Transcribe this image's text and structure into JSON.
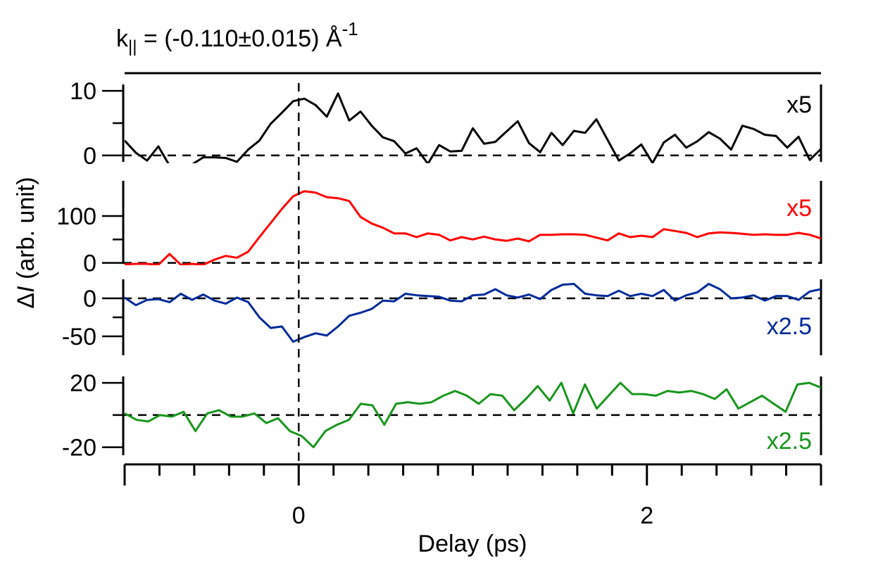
{
  "chart_data": {
    "type": "line",
    "title_main": "k",
    "title_sub": "||",
    "title_rest": " = (-0.110±0.015) Å",
    "title_sup": "-1",
    "xlabel": "Delay (ps)",
    "ylabel_delta": "Δ",
    "ylabel_I": "I",
    "ylabel_rest": " (arb. unit)",
    "xlim": [
      -1.0,
      3.0
    ],
    "xticks": [
      0,
      2
    ],
    "x_minor_step": 0.2,
    "zero_line_x": 0,
    "panels": [
      {
        "name": "panel-1",
        "color": "#000000",
        "multiplier": "x5",
        "ylim": [
          -1,
          11
        ],
        "yticks": [
          0,
          10
        ],
        "y_minor": [
          5
        ],
        "zero_y": 0,
        "series_y": [
          2.3,
          0.4,
          -0.8,
          1.4,
          -1.6,
          null,
          -1.4,
          -0.3,
          -0.3,
          -0.4,
          -1.0,
          0.9,
          2.3,
          4.9,
          6.6,
          8.4,
          8.8,
          7.8,
          6.0,
          9.6,
          5.4,
          6.8,
          4.6,
          2.8,
          2.2,
          0.3,
          1.1,
          -1.3,
          1.6,
          0.6,
          0.7,
          4.2,
          1.8,
          2.1,
          3.7,
          5.3,
          1.9,
          0.5,
          3.5,
          1.6,
          3.8,
          3.5,
          5.6,
          2.4,
          -0.8,
          0.3,
          1.7,
          -1.2,
          2.0,
          3.2,
          1.2,
          2.2,
          3.6,
          2.6,
          0.9,
          4.6,
          4.1,
          3.2,
          3.0,
          1.2,
          2.9,
          -0.7,
          1.0
        ]
      },
      {
        "name": "panel-2",
        "color": "#ff0000",
        "multiplier": "x5",
        "ylim": [
          -2,
          175
        ],
        "yticks": [
          0,
          100
        ],
        "y_minor": [
          50
        ],
        "zero_y": 0,
        "series_y": [
          -3,
          -2,
          -2,
          -4,
          19,
          -4,
          -2,
          -4,
          7,
          15,
          11,
          24,
          55,
          85,
          115,
          142,
          153,
          150,
          140,
          138,
          132,
          98,
          84,
          75,
          63,
          63,
          55,
          63,
          60,
          48,
          55,
          50,
          56,
          50,
          47,
          52,
          46,
          60,
          60,
          61,
          61,
          60,
          54,
          48,
          63,
          55,
          58,
          55,
          72,
          68,
          64,
          55,
          63,
          65,
          64,
          62,
          60,
          61,
          60,
          60,
          64,
          60,
          52
        ]
      },
      {
        "name": "panel-3",
        "color": "#002a9a",
        "multiplier": "x2.5",
        "ylim": [
          -75,
          25
        ],
        "yticks": [
          0,
          -50
        ],
        "y_minor": [
          -25
        ],
        "zero_y": 0,
        "series_y": [
          1,
          -9,
          -2,
          -1,
          -5,
          6,
          -2,
          5,
          -3,
          -7,
          1,
          -5,
          -25,
          -39,
          -37,
          -57,
          -51,
          -46,
          -49,
          -37,
          -23,
          -19,
          -14,
          -3,
          -4,
          6,
          4,
          3,
          2,
          -3,
          -4,
          4,
          5,
          12,
          4,
          1,
          5,
          -1,
          11,
          18,
          19,
          6,
          4,
          3,
          10,
          3,
          6,
          3,
          11,
          -3,
          4,
          8,
          19,
          12,
          0,
          1,
          4,
          -3,
          3,
          3,
          -2,
          9,
          12
        ]
      },
      {
        "name": "panel-4",
        "color": "#18961c",
        "multiplier": "x2.5",
        "ylim": [
          -25,
          24
        ],
        "yticks": [
          20,
          -20
        ],
        "y_minor": [
          0
        ],
        "zero_y": 0,
        "series_y": [
          1,
          -3,
          -4,
          0,
          -1,
          2,
          -10,
          1,
          3,
          -1,
          -1,
          1,
          -5,
          -2,
          -10,
          -13,
          -20,
          -10,
          -6,
          -3,
          7,
          6,
          -6,
          7,
          8,
          7,
          8,
          12,
          15,
          12,
          7,
          13,
          12,
          3,
          10,
          18,
          9,
          20,
          1,
          19,
          4,
          12,
          20,
          13,
          13,
          12,
          15,
          14,
          15,
          13,
          10,
          16,
          4,
          8,
          12,
          7,
          2,
          19,
          20,
          17
        ]
      }
    ]
  }
}
